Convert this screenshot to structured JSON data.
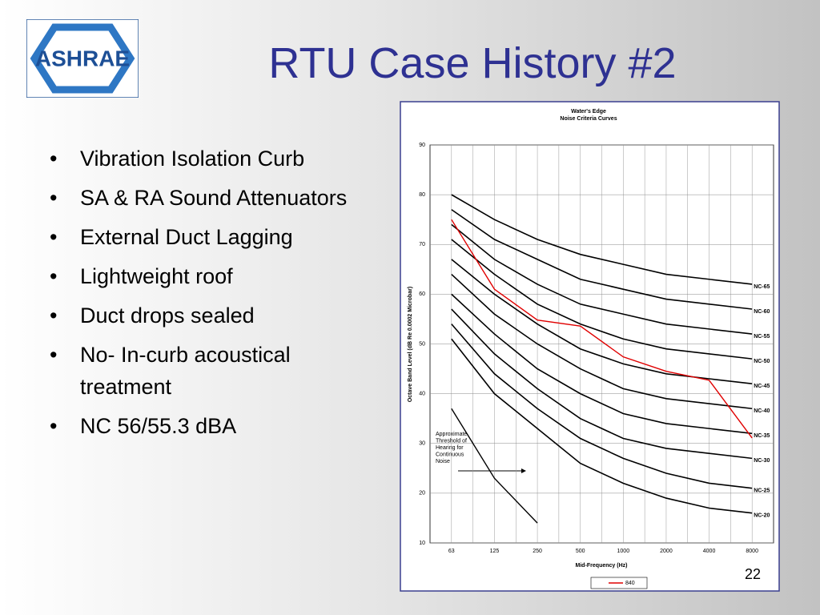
{
  "logo": {
    "text": "ASHRAE"
  },
  "title": "RTU Case History #2",
  "bullets": [
    "Vibration Isolation Curb",
    "SA & RA Sound Attenuators",
    "External Duct Lagging",
    "Lightweight roof",
    "Duct drops sealed",
    "No- In-curb acoustical treatment",
    "NC 56/55.3 dBA"
  ],
  "page_number": "22",
  "chart_data": {
    "type": "line",
    "title": "Water's Edge",
    "subtitle": "Noise Criteria Curves",
    "x_label": "Mid-Frequency (Hz)",
    "y_label": "Octave Band Level (dB Re 0.0002 Microbar)",
    "categories": [
      "63",
      "125",
      "250",
      "500",
      "1000",
      "2000",
      "4000",
      "8000"
    ],
    "ylim": [
      10,
      90
    ],
    "yticks": [
      10,
      20,
      30,
      40,
      50,
      60,
      70,
      80,
      90
    ],
    "grid": true,
    "series": [
      {
        "name": "NC-65",
        "color": "#000000",
        "end_label": true,
        "values": [
          80,
          75,
          71,
          68,
          66,
          64,
          63,
          62
        ]
      },
      {
        "name": "NC-60",
        "color": "#000000",
        "end_label": true,
        "values": [
          77,
          71,
          67,
          63,
          61,
          59,
          58,
          57
        ]
      },
      {
        "name": "NC-55",
        "color": "#000000",
        "end_label": true,
        "values": [
          74,
          67,
          62,
          58,
          56,
          54,
          53,
          52
        ]
      },
      {
        "name": "NC-50",
        "color": "#000000",
        "end_label": true,
        "values": [
          71,
          64,
          58,
          54,
          51,
          49,
          48,
          47
        ]
      },
      {
        "name": "NC-45",
        "color": "#000000",
        "end_label": true,
        "values": [
          67,
          60,
          54,
          49,
          46,
          44,
          43,
          42
        ]
      },
      {
        "name": "NC-40",
        "color": "#000000",
        "end_label": true,
        "values": [
          64,
          56,
          50,
          45,
          41,
          39,
          38,
          37
        ]
      },
      {
        "name": "NC-35",
        "color": "#000000",
        "end_label": true,
        "values": [
          60,
          52,
          45,
          40,
          36,
          34,
          33,
          32
        ]
      },
      {
        "name": "NC-30",
        "color": "#000000",
        "end_label": true,
        "values": [
          57,
          48,
          41,
          35,
          31,
          29,
          28,
          27
        ]
      },
      {
        "name": "NC-25",
        "color": "#000000",
        "end_label": true,
        "values": [
          54,
          44,
          37,
          31,
          27,
          24,
          22,
          21
        ]
      },
      {
        "name": "NC-20",
        "color": "#000000",
        "end_label": true,
        "values": [
          51,
          40,
          33,
          26,
          22,
          19,
          17,
          16
        ]
      },
      {
        "color": "#000000",
        "end_label": false,
        "values": [
          37,
          23,
          14,
          null,
          null,
          null,
          null,
          null
        ]
      },
      {
        "name": "840",
        "color": "#e00000",
        "end_label": false,
        "values": [
          75,
          61,
          54.8,
          53.6,
          47.4,
          44.5,
          42.7,
          31.1
        ]
      }
    ],
    "annotation": [
      "Approximate",
      "Threshold of",
      "Hearing for",
      "Continuous",
      "Noise"
    ]
  }
}
